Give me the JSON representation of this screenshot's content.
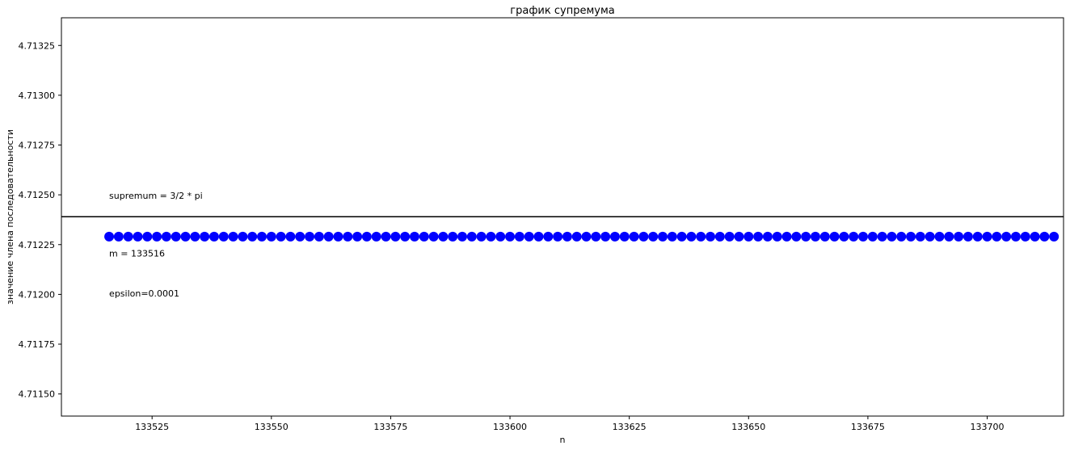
{
  "chart_data": {
    "type": "scatter",
    "title": "график супремума",
    "xlabel": "n",
    "ylabel": "значение члена последовательности",
    "xlim": [
      133506,
      133716
    ],
    "ylim": [
      4.711389,
      4.713389
    ],
    "xticks": [
      133525,
      133550,
      133575,
      133600,
      133625,
      133650,
      133675,
      133700
    ],
    "yticks": [
      4.7115,
      4.71175,
      4.712,
      4.71225,
      4.7125,
      4.71275,
      4.713,
      4.71325
    ],
    "ytick_labels": [
      "4.71150",
      "4.71175",
      "4.71200",
      "4.71225",
      "4.71250",
      "4.71275",
      "4.71300",
      "4.71325"
    ],
    "grid": false,
    "series": [
      {
        "color": "#0000ff",
        "marker": "circle",
        "x_start": 133516,
        "x_end": 133715,
        "x_step": 2,
        "y": 4.71229
      }
    ],
    "hline": {
      "y": 4.71239,
      "color": "#000000"
    },
    "annotations": [
      {
        "text": "supremum = 3/2 * pi",
        "x": 133516,
        "y": 4.71248
      },
      {
        "text": "m = 133516",
        "x": 133516,
        "y": 4.71219
      },
      {
        "text": "epsilon=0.0001",
        "x": 133516,
        "y": 4.71199
      }
    ]
  }
}
